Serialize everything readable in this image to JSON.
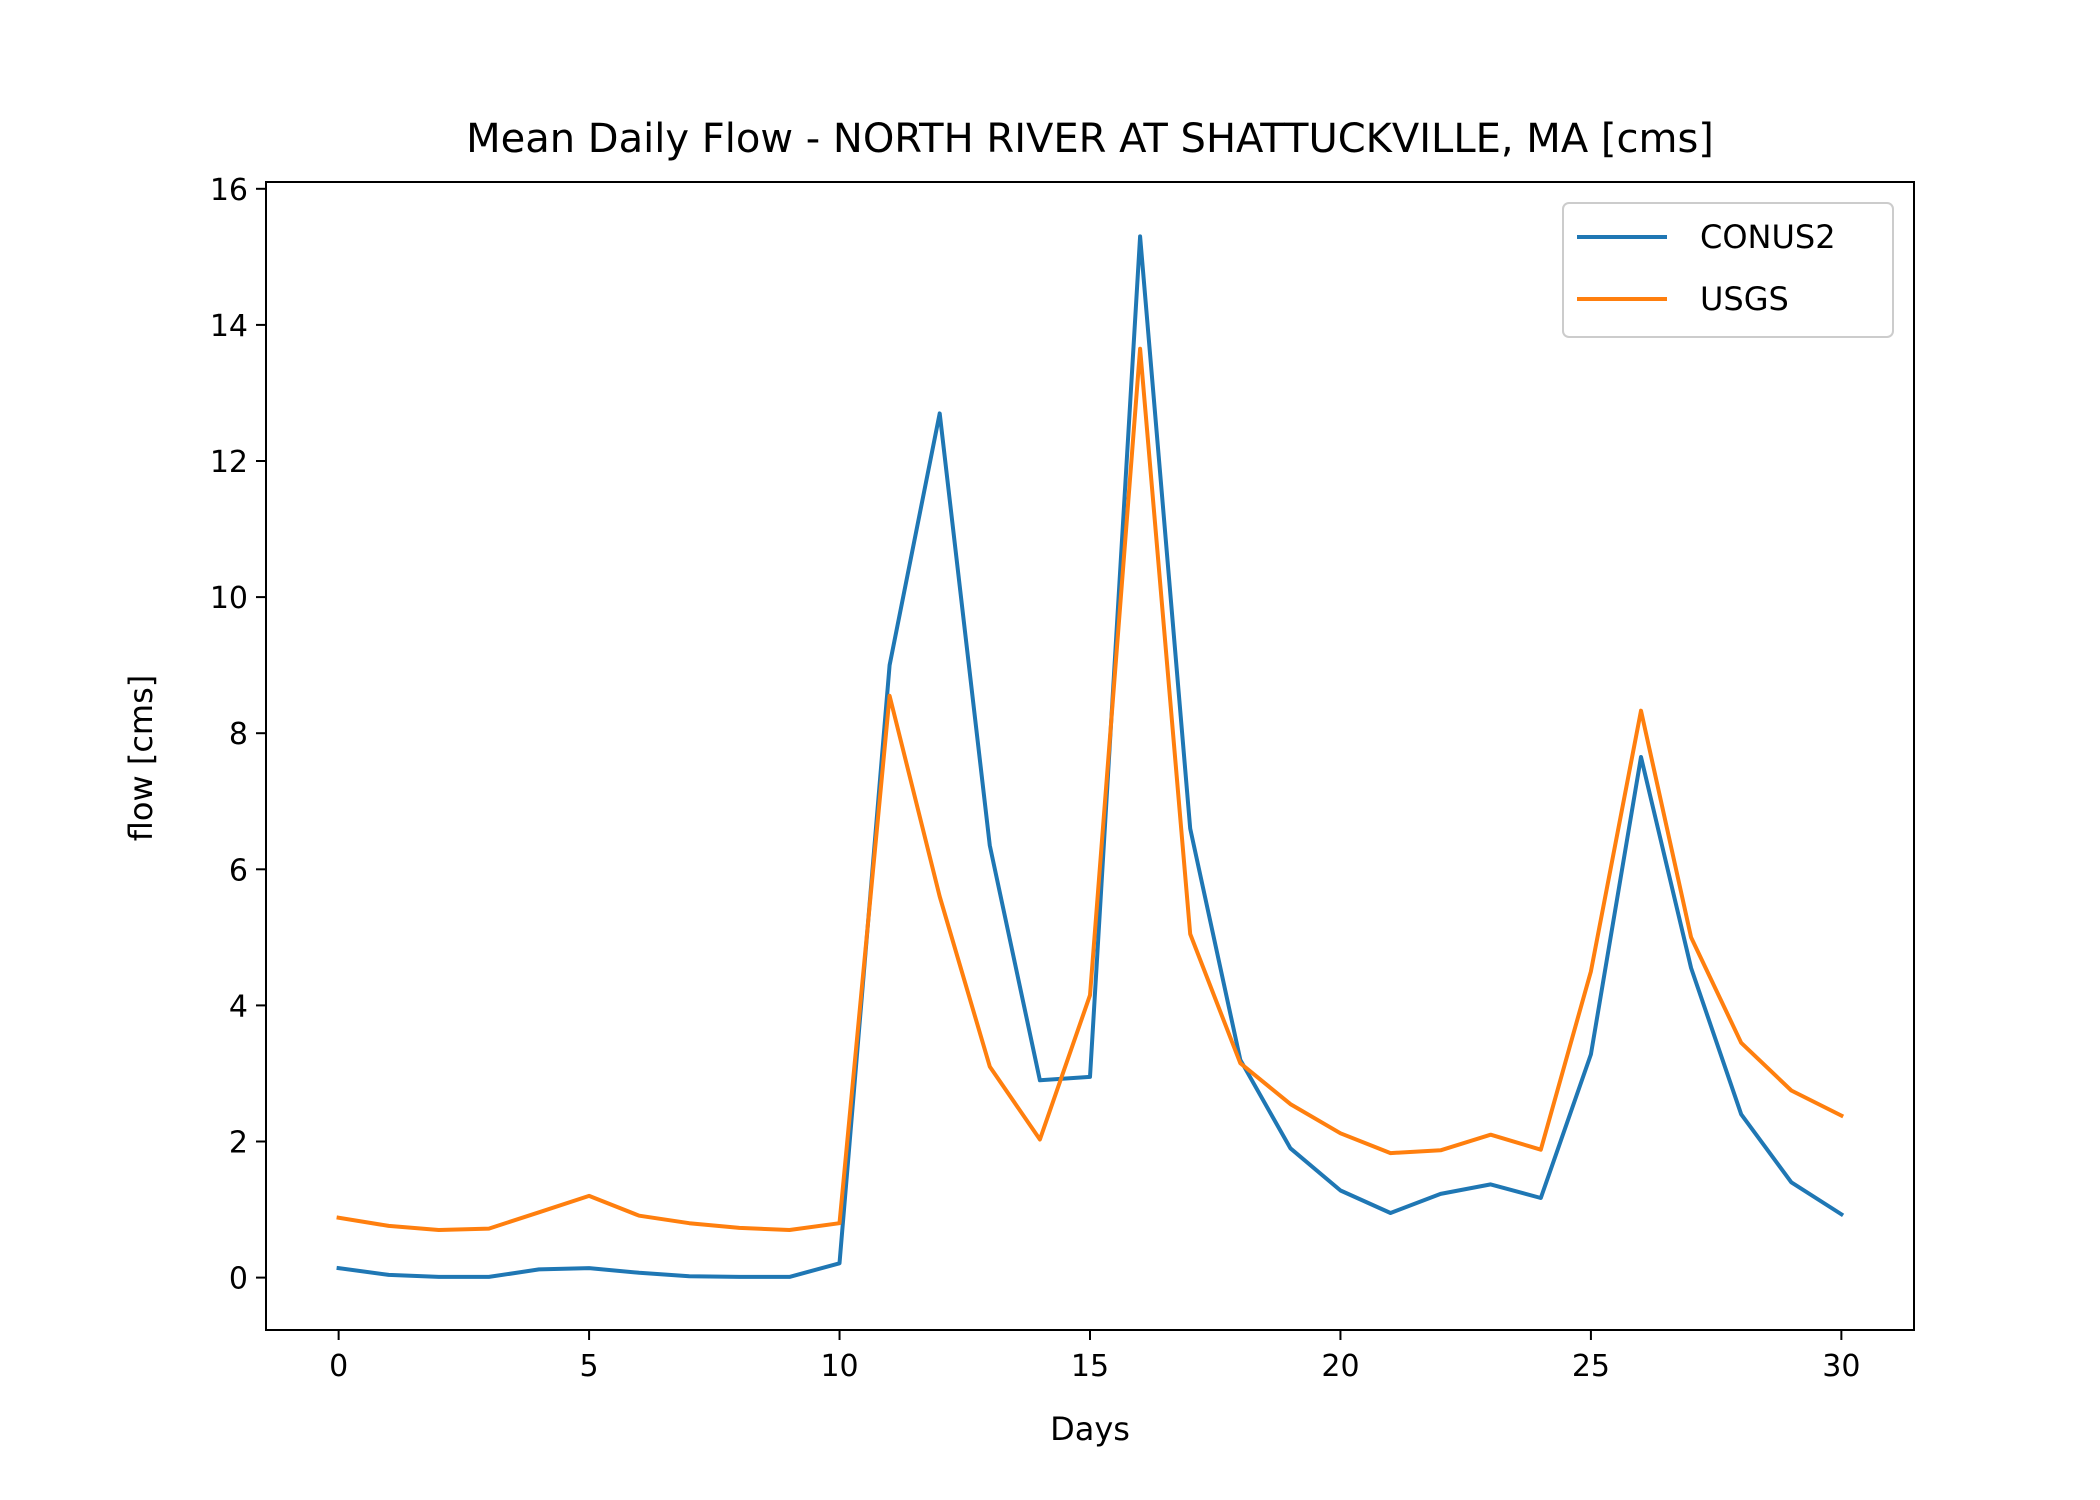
{
  "chart_data": {
    "type": "line",
    "title": "Mean Daily Flow - NORTH RIVER AT SHATTUCKVILLE, MA [cms]",
    "xlabel": "Days",
    "ylabel": "flow [cms]",
    "xlim": [
      -1.45,
      31.45
    ],
    "ylim": [
      -0.77,
      16.1
    ],
    "xticks": [
      0,
      5,
      10,
      15,
      20,
      25,
      30
    ],
    "yticks": [
      0,
      2,
      4,
      6,
      8,
      10,
      12,
      14,
      16
    ],
    "grid": false,
    "legend_position": "upper right",
    "x": [
      0,
      1,
      2,
      3,
      4,
      5,
      6,
      7,
      8,
      9,
      10,
      11,
      12,
      13,
      14,
      15,
      16,
      17,
      18,
      19,
      20,
      21,
      22,
      23,
      24,
      25,
      26,
      27,
      28,
      29,
      30
    ],
    "series": [
      {
        "name": "CONUS2",
        "color": "#1f77b4",
        "values": [
          0.14,
          0.04,
          0.01,
          0.01,
          0.12,
          0.14,
          0.07,
          0.02,
          0.01,
          0.01,
          0.21,
          9.0,
          12.7,
          6.35,
          2.9,
          2.95,
          15.3,
          6.6,
          3.2,
          1.9,
          1.28,
          0.95,
          1.23,
          1.37,
          1.17,
          3.28,
          7.65,
          4.55,
          2.4,
          1.4,
          0.93
        ]
      },
      {
        "name": "USGS",
        "color": "#ff7f0e",
        "values": [
          0.88,
          0.76,
          0.7,
          0.72,
          0.96,
          1.2,
          0.91,
          0.8,
          0.73,
          0.7,
          0.8,
          8.55,
          5.6,
          3.1,
          2.03,
          4.15,
          13.65,
          5.05,
          3.15,
          2.55,
          2.12,
          1.83,
          1.87,
          2.1,
          1.88,
          4.5,
          8.33,
          5.0,
          3.45,
          2.75,
          2.38
        ]
      }
    ]
  }
}
